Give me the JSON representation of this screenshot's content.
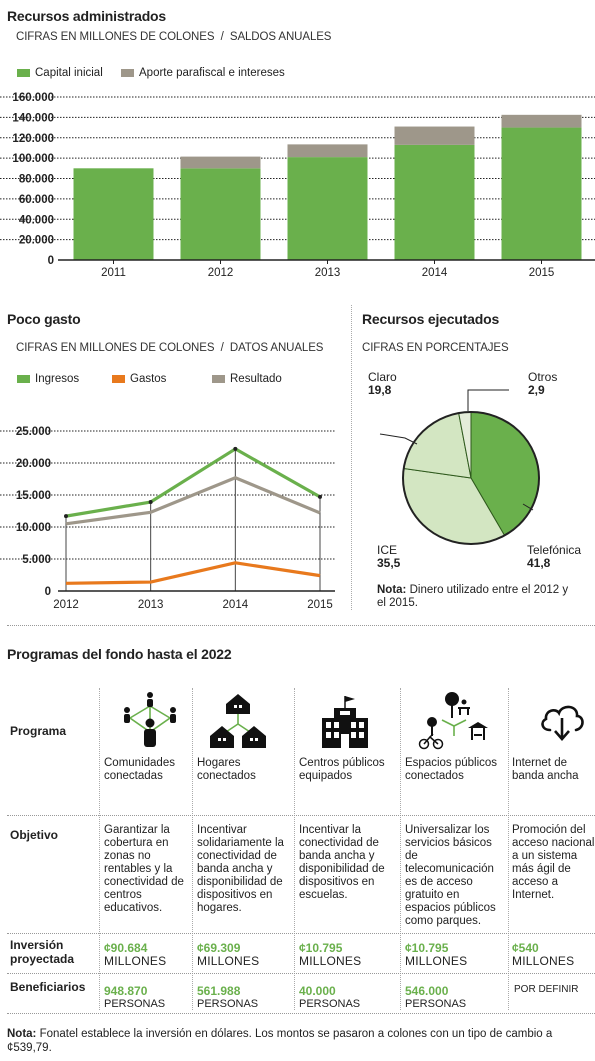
{
  "chart1": {
    "title": "Recursos administrados",
    "subtitle": "CIFRAS EN MILLONES DE COLONES  /  SALDOS ANUALES",
    "legend": [
      {
        "label": "Capital inicial",
        "color": "#6ab04c"
      },
      {
        "label": "Aporte parafiscal e intereses",
        "color": "#9e978a"
      }
    ]
  },
  "chart2": {
    "title": "Poco gasto",
    "subtitle": "CIFRAS EN MILLONES DE COLONES  /  DATOS ANUALES",
    "legend": [
      {
        "label": "Ingresos",
        "color": "#6ab04c"
      },
      {
        "label": "Gastos",
        "color": "#e8791d"
      },
      {
        "label": "Resultado",
        "color": "#9e978a"
      }
    ]
  },
  "chart3": {
    "title": "Recursos ejecutados",
    "subtitle": "CIFRAS EN PORCENTAJES",
    "note_bold": "Nota:",
    "note_text": " Dinero utilizado entre el 2012 y el 2015."
  },
  "chart_data": [
    {
      "type": "bar",
      "stacked": true,
      "categories": [
        "2011",
        "2012",
        "2013",
        "2014",
        "2015"
      ],
      "series": [
        {
          "name": "Capital inicial",
          "values": [
            90000,
            90000,
            101000,
            113000,
            130000
          ],
          "color": "#6ab04c"
        },
        {
          "name": "Aporte parafiscal e intereses",
          "values": [
            0,
            11500,
            12500,
            18000,
            12500
          ],
          "color": "#9e978a"
        }
      ],
      "ylim": [
        0,
        160000
      ],
      "yticks": [
        "0",
        "20.000",
        "40.000",
        "60.000",
        "80.000",
        "100.000",
        "120.000",
        "140.000",
        "160.000"
      ],
      "grid": true
    },
    {
      "type": "line",
      "categories": [
        "2012",
        "2013",
        "2014",
        "2015"
      ],
      "series": [
        {
          "name": "Ingresos",
          "values": [
            11700,
            13900,
            22200,
            14700
          ],
          "color": "#6ab04c"
        },
        {
          "name": "Gastos",
          "values": [
            1200,
            1400,
            4400,
            2400
          ],
          "color": "#e8791d"
        },
        {
          "name": "Resultado",
          "values": [
            10500,
            12300,
            17700,
            12200
          ],
          "color": "#9e978a"
        }
      ],
      "ylim": [
        0,
        25000
      ],
      "yticks": [
        "0",
        "5.000",
        "10.000",
        "15.000",
        "20.000",
        "25.000"
      ],
      "grid": true
    },
    {
      "type": "pie",
      "slices": [
        {
          "label": "Telefónica",
          "value": 41.8,
          "value_label": "41,8",
          "color": "#6ab04c"
        },
        {
          "label": "ICE",
          "value": 35.5,
          "value_label": "35,5",
          "color": "#d3e6c2"
        },
        {
          "label": "Claro",
          "value": 19.8,
          "value_label": "19,8",
          "color": "#d3e6c2"
        },
        {
          "label": "Otros",
          "value": 2.9,
          "value_label": "2,9",
          "color": "#e4ecd9"
        }
      ]
    }
  ],
  "programs": {
    "title": "Programas del fondo hasta el 2022",
    "row_labels": {
      "programa": "Programa",
      "objetivo": "Objetivo",
      "inversion": "Inversión proyectada",
      "beneficiarios": "Beneficiarios"
    },
    "columns": [
      {
        "icon": "people-network-icon",
        "name": "Comunidades conectadas",
        "objective": "Garantizar la cobertura en zonas no rentables y la conectividad de centros educativos.",
        "investment": "¢90.684",
        "investment_unit": "MILLONES",
        "beneficiaries": "948.870",
        "beneficiaries_unit": "PERSONAS"
      },
      {
        "icon": "houses-network-icon",
        "name": "Hogares conectados",
        "objective": "Incentivar solidariamente la conectividad de banda ancha y disponibilidad de dispositivos en hogares.",
        "investment": "¢69.309",
        "investment_unit": "MILLONES",
        "beneficiaries": "561.988",
        "beneficiaries_unit": "PERSONAS"
      },
      {
        "icon": "public-building-icon",
        "name": "Centros públicos equipados",
        "objective": "Incentivar la conectividad de banda ancha y disponibilidad de dispositivos en escuelas.",
        "investment": "¢10.795",
        "investment_unit": "MILLONES",
        "beneficiaries": "40.000",
        "beneficiaries_unit": "PERSONAS"
      },
      {
        "icon": "public-spaces-icon",
        "name": "Espacios públicos conectados",
        "objective": "Universalizar los servicios básicos de telecomunicación es de acceso gratuito en espacios públicos como parques.",
        "investment": "¢10.795",
        "investment_unit": "MILLONES",
        "beneficiaries": "546.000",
        "beneficiaries_unit": "PERSONAS"
      },
      {
        "icon": "cloud-download-icon",
        "name": "Internet de banda ancha",
        "objective": "Promoción del acceso nacional a un sistema más ágil de acceso a Internet.",
        "investment": "¢540",
        "investment_unit": "MILLONES",
        "beneficiaries": "",
        "beneficiaries_unit": "POR DEFINIR"
      }
    ]
  },
  "footer": {
    "note_bold": "Nota:",
    "note_text": " Fonatel establece la inversión en dólares. Los montos se pasaron a colones con un tipo de cambio a ¢539,79."
  }
}
